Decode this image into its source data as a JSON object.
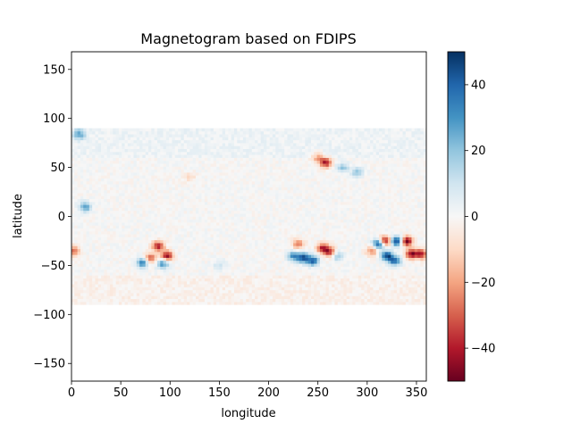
{
  "chart_data": {
    "type": "heatmap",
    "title": "Magnetogram based on FDIPS",
    "xlabel": "longitude",
    "ylabel": "latitude",
    "xlim": [
      0,
      360
    ],
    "ylim": [
      -168,
      168
    ],
    "data_extent": {
      "x": [
        0,
        360
      ],
      "y": [
        -90,
        90
      ]
    },
    "x_ticks": [
      0,
      50,
      100,
      150,
      200,
      250,
      300,
      350
    ],
    "y_ticks": [
      -150,
      -100,
      -50,
      0,
      50,
      100,
      150
    ],
    "colormap": "RdBu",
    "colorbar": {
      "range": [
        -50,
        50
      ],
      "ticks": [
        -40,
        -20,
        0,
        20,
        40
      ],
      "tick_labels": [
        "−40",
        "−20",
        "0",
        "20",
        "40"
      ],
      "stops": [
        "#67001f",
        "#b2182b",
        "#d6604d",
        "#f4a582",
        "#fddbc7",
        "#f7f7f7",
        "#d1e5f0",
        "#92c5de",
        "#4393c3",
        "#2166ac",
        "#053061"
      ]
    },
    "features": [
      {
        "lon": 80,
        "lat": -42,
        "value": -30
      },
      {
        "lon": 72,
        "lat": -47,
        "value": 35
      },
      {
        "lon": 88,
        "lat": -30,
        "value": -40
      },
      {
        "lon": 97,
        "lat": -40,
        "value": -45
      },
      {
        "lon": 93,
        "lat": -48,
        "value": 30
      },
      {
        "lon": 14,
        "lat": 10,
        "value": 30
      },
      {
        "lon": 8,
        "lat": 84,
        "value": 25
      },
      {
        "lon": 225,
        "lat": -40,
        "value": 30
      },
      {
        "lon": 235,
        "lat": -42,
        "value": 45
      },
      {
        "lon": 245,
        "lat": -45,
        "value": 40
      },
      {
        "lon": 230,
        "lat": -28,
        "value": -25
      },
      {
        "lon": 255,
        "lat": -32,
        "value": -40
      },
      {
        "lon": 262,
        "lat": -36,
        "value": -35
      },
      {
        "lon": 270,
        "lat": -40,
        "value": 20
      },
      {
        "lon": 258,
        "lat": 55,
        "value": -40
      },
      {
        "lon": 250,
        "lat": 60,
        "value": -20
      },
      {
        "lon": 275,
        "lat": 50,
        "value": 20
      },
      {
        "lon": 290,
        "lat": 45,
        "value": 20
      },
      {
        "lon": 312,
        "lat": -28,
        "value": 50
      },
      {
        "lon": 318,
        "lat": -25,
        "value": -50
      },
      {
        "lon": 330,
        "lat": -25,
        "value": 50
      },
      {
        "lon": 340,
        "lat": -25,
        "value": -50
      },
      {
        "lon": 320,
        "lat": -40,
        "value": 45
      },
      {
        "lon": 328,
        "lat": -45,
        "value": 40
      },
      {
        "lon": 345,
        "lat": -38,
        "value": -45
      },
      {
        "lon": 355,
        "lat": -38,
        "value": -40
      },
      {
        "lon": 305,
        "lat": -35,
        "value": -25
      },
      {
        "lon": 2,
        "lat": -35,
        "value": -30
      },
      {
        "lon": 150,
        "lat": -50,
        "value": 10
      },
      {
        "lon": 120,
        "lat": 40,
        "value": -10
      }
    ]
  }
}
